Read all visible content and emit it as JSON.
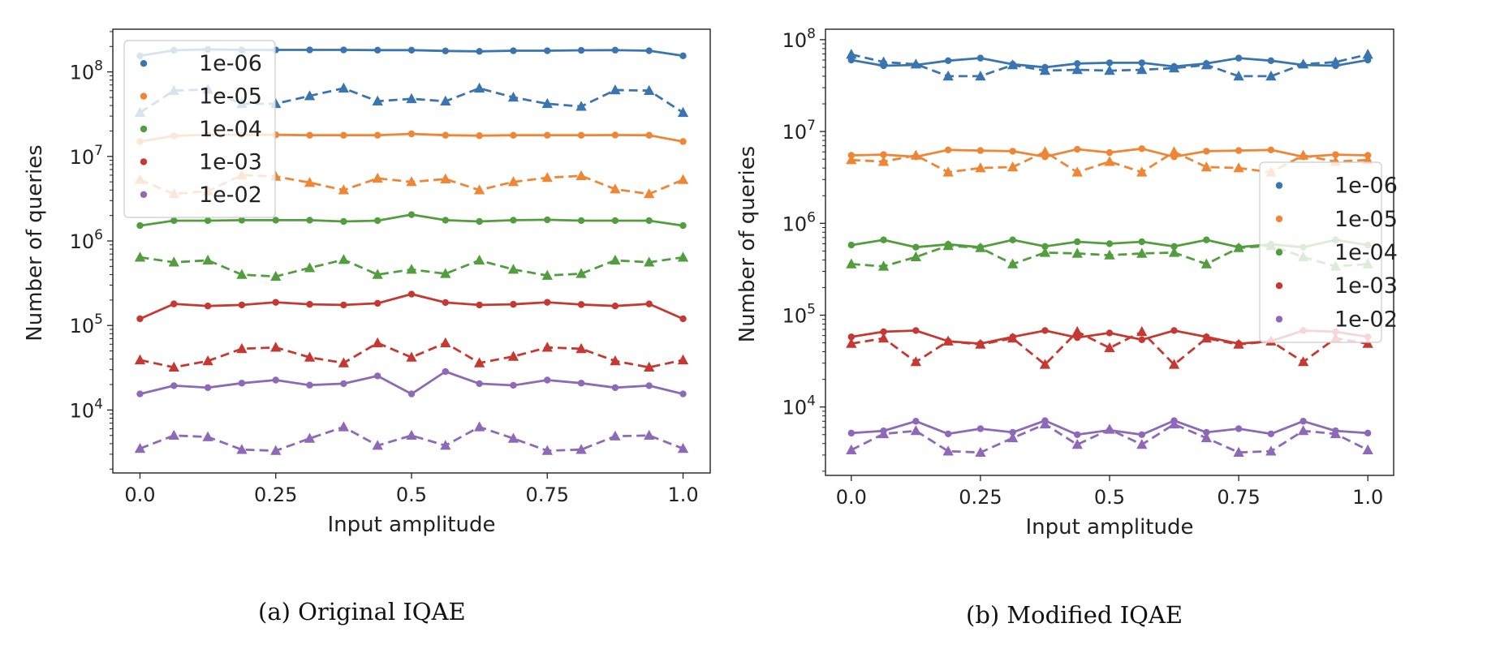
{
  "chart_data": [
    {
      "type": "line",
      "caption": "(a) Original IQAE",
      "xlabel": "Input amplitude",
      "ylabel": "Number of queries",
      "yscale": "log",
      "xlim": [
        -0.05,
        1.05
      ],
      "ylim": [
        1800,
        320000000
      ],
      "xticks": [
        {
          "value": 0.0,
          "label": "0.0"
        },
        {
          "value": 0.25,
          "label": "0.25"
        },
        {
          "value": 0.5,
          "label": "0.5"
        },
        {
          "value": 0.75,
          "label": "0.75"
        },
        {
          "value": 1.0,
          "label": "1.0"
        }
      ],
      "yticks": [
        {
          "value": 10000,
          "base": "10",
          "exp": "4"
        },
        {
          "value": 100000,
          "base": "10",
          "exp": "5"
        },
        {
          "value": 1000000,
          "base": "10",
          "exp": "6"
        },
        {
          "value": 10000000,
          "base": "10",
          "exp": "7"
        },
        {
          "value": 100000000,
          "base": "10",
          "exp": "8"
        }
      ],
      "legend_position": "top-left",
      "x": [
        0,
        0.0625,
        0.125,
        0.1875,
        0.25,
        0.3125,
        0.375,
        0.4375,
        0.5,
        0.5625,
        0.625,
        0.6875,
        0.75,
        0.8125,
        0.875,
        0.9375,
        1.0
      ],
      "series": [
        {
          "name": "1e-06",
          "color": "#3b75af",
          "solid": [
            155000000,
            180000000,
            185000000,
            182000000,
            182000000,
            182000000,
            182000000,
            181000000,
            181000000,
            177000000,
            175000000,
            178000000,
            178000000,
            180000000,
            181000000,
            178000000,
            155000000
          ],
          "dashed": [
            33000000,
            60000000,
            62000000,
            42000000,
            42000000,
            52000000,
            64000000,
            45000000,
            48000000,
            45000000,
            64000000,
            50000000,
            42000000,
            39000000,
            61000000,
            60000000,
            33000000
          ]
        },
        {
          "name": "1e-05",
          "color": "#ef8636",
          "solid": [
            15000000,
            17500000,
            18000000,
            18000000,
            18000000,
            17800000,
            17800000,
            17800000,
            18500000,
            17800000,
            17600000,
            17800000,
            17800000,
            17800000,
            17900000,
            17800000,
            15000000
          ],
          "dashed": [
            5300000,
            3600000,
            3900000,
            6000000,
            5800000,
            4900000,
            4000000,
            5500000,
            5000000,
            5400000,
            4000000,
            5000000,
            5600000,
            5900000,
            4100000,
            3600000,
            5300000
          ]
        },
        {
          "name": "1e-04",
          "color": "#529e3e",
          "solid": [
            1520000,
            1740000,
            1740000,
            1760000,
            1760000,
            1760000,
            1700000,
            1740000,
            2050000,
            1760000,
            1700000,
            1760000,
            1780000,
            1740000,
            1740000,
            1740000,
            1520000
          ],
          "dashed": [
            640000,
            560000,
            590000,
            400000,
            380000,
            480000,
            600000,
            400000,
            460000,
            410000,
            590000,
            460000,
            390000,
            410000,
            590000,
            560000,
            640000
          ]
        },
        {
          "name": "1e-03",
          "color": "#c53932",
          "solid": [
            120000,
            180000,
            170000,
            175000,
            188000,
            178000,
            175000,
            183000,
            235000,
            187000,
            175000,
            178000,
            188000,
            177000,
            170000,
            180000,
            120000
          ],
          "dashed": [
            39000,
            32000,
            38000,
            53000,
            55000,
            42000,
            36000,
            62000,
            42000,
            62000,
            36000,
            43000,
            55000,
            53000,
            38000,
            32000,
            39000
          ]
        },
        {
          "name": "1e-02",
          "color": "#8d69b8",
          "solid": [
            15500,
            19400,
            18400,
            20800,
            22600,
            19700,
            20500,
            25300,
            15500,
            28500,
            20500,
            19600,
            22600,
            20800,
            18400,
            19400,
            15500
          ],
          "dashed": [
            3500,
            5000,
            4800,
            3400,
            3300,
            4600,
            6300,
            3800,
            5000,
            3800,
            6300,
            4600,
            3300,
            3400,
            4900,
            5000,
            3500
          ]
        }
      ]
    },
    {
      "type": "line",
      "caption": "(b) Modified IQAE",
      "xlabel": "Input amplitude",
      "ylabel": "Number of queries",
      "yscale": "log",
      "xlim": [
        -0.05,
        1.05
      ],
      "ylim": [
        1800,
        130000000
      ],
      "xticks": [
        {
          "value": 0.0,
          "label": "0.0"
        },
        {
          "value": 0.25,
          "label": "0.25"
        },
        {
          "value": 0.5,
          "label": "0.5"
        },
        {
          "value": 0.75,
          "label": "0.75"
        },
        {
          "value": 1.0,
          "label": "1.0"
        }
      ],
      "yticks": [
        {
          "value": 10000,
          "base": "10",
          "exp": "4"
        },
        {
          "value": 100000,
          "base": "10",
          "exp": "5"
        },
        {
          "value": 1000000,
          "base": "10",
          "exp": "6"
        },
        {
          "value": 10000000,
          "base": "10",
          "exp": "7"
        },
        {
          "value": 100000000,
          "base": "10",
          "exp": "8"
        }
      ],
      "legend_position": "center-right",
      "x": [
        0,
        0.0625,
        0.125,
        0.1875,
        0.25,
        0.3125,
        0.375,
        0.4375,
        0.5,
        0.5625,
        0.625,
        0.6875,
        0.75,
        0.8125,
        0.875,
        0.9375,
        1.0
      ],
      "series": [
        {
          "name": "1e-06",
          "color": "#3b75af",
          "solid": [
            60000000,
            52000000,
            53000000,
            59000000,
            63000000,
            54000000,
            50000000,
            55000000,
            56000000,
            56000000,
            51000000,
            55000000,
            63000000,
            59000000,
            53000000,
            52000000,
            60000000
          ],
          "dashed": [
            69000000,
            57000000,
            54000000,
            40000000,
            40000000,
            53000000,
            46000000,
            47000000,
            46000000,
            47000000,
            49000000,
            53000000,
            40000000,
            40000000,
            54000000,
            57000000,
            69000000
          ]
        },
        {
          "name": "1e-05",
          "color": "#ef8636",
          "solid": [
            5500000,
            5600000,
            5300000,
            6300000,
            6200000,
            6100000,
            5300000,
            6400000,
            5900000,
            6500000,
            5300000,
            6100000,
            6200000,
            6300000,
            5300000,
            5600000,
            5500000
          ],
          "dashed": [
            4900000,
            4700000,
            5500000,
            3600000,
            4000000,
            4100000,
            6000000,
            3600000,
            4700000,
            3600000,
            6000000,
            4100000,
            4000000,
            3600000,
            5500000,
            4700000,
            4900000
          ]
        },
        {
          "name": "1e-04",
          "color": "#529e3e",
          "solid": [
            580000,
            660000,
            550000,
            590000,
            550000,
            660000,
            560000,
            630000,
            600000,
            630000,
            560000,
            660000,
            550000,
            590000,
            550000,
            660000,
            580000
          ],
          "dashed": [
            360000,
            340000,
            430000,
            570000,
            540000,
            360000,
            480000,
            470000,
            450000,
            470000,
            480000,
            360000,
            540000,
            570000,
            430000,
            340000,
            360000
          ]
        },
        {
          "name": "1e-03",
          "color": "#c53932",
          "solid": [
            58000,
            66000,
            68000,
            52000,
            49000,
            58000,
            68000,
            57000,
            64000,
            54000,
            68000,
            58000,
            49000,
            52000,
            68000,
            66000,
            58000
          ],
          "dashed": [
            49000,
            56000,
            31000,
            52000,
            48000,
            56000,
            29000,
            66000,
            44000,
            66000,
            29000,
            56000,
            48000,
            52000,
            31000,
            56000,
            49000
          ]
        },
        {
          "name": "1e-02",
          "color": "#8d69b8",
          "solid": [
            5200,
            5500,
            7000,
            5100,
            5800,
            5300,
            7100,
            5000,
            5600,
            5000,
            7100,
            5300,
            5800,
            5100,
            7000,
            5500,
            5200
          ],
          "dashed": [
            3400,
            5100,
            5500,
            3300,
            3200,
            4600,
            6500,
            3900,
            5700,
            3900,
            6500,
            4600,
            3200,
            3300,
            5500,
            5100,
            3400
          ]
        }
      ]
    }
  ]
}
